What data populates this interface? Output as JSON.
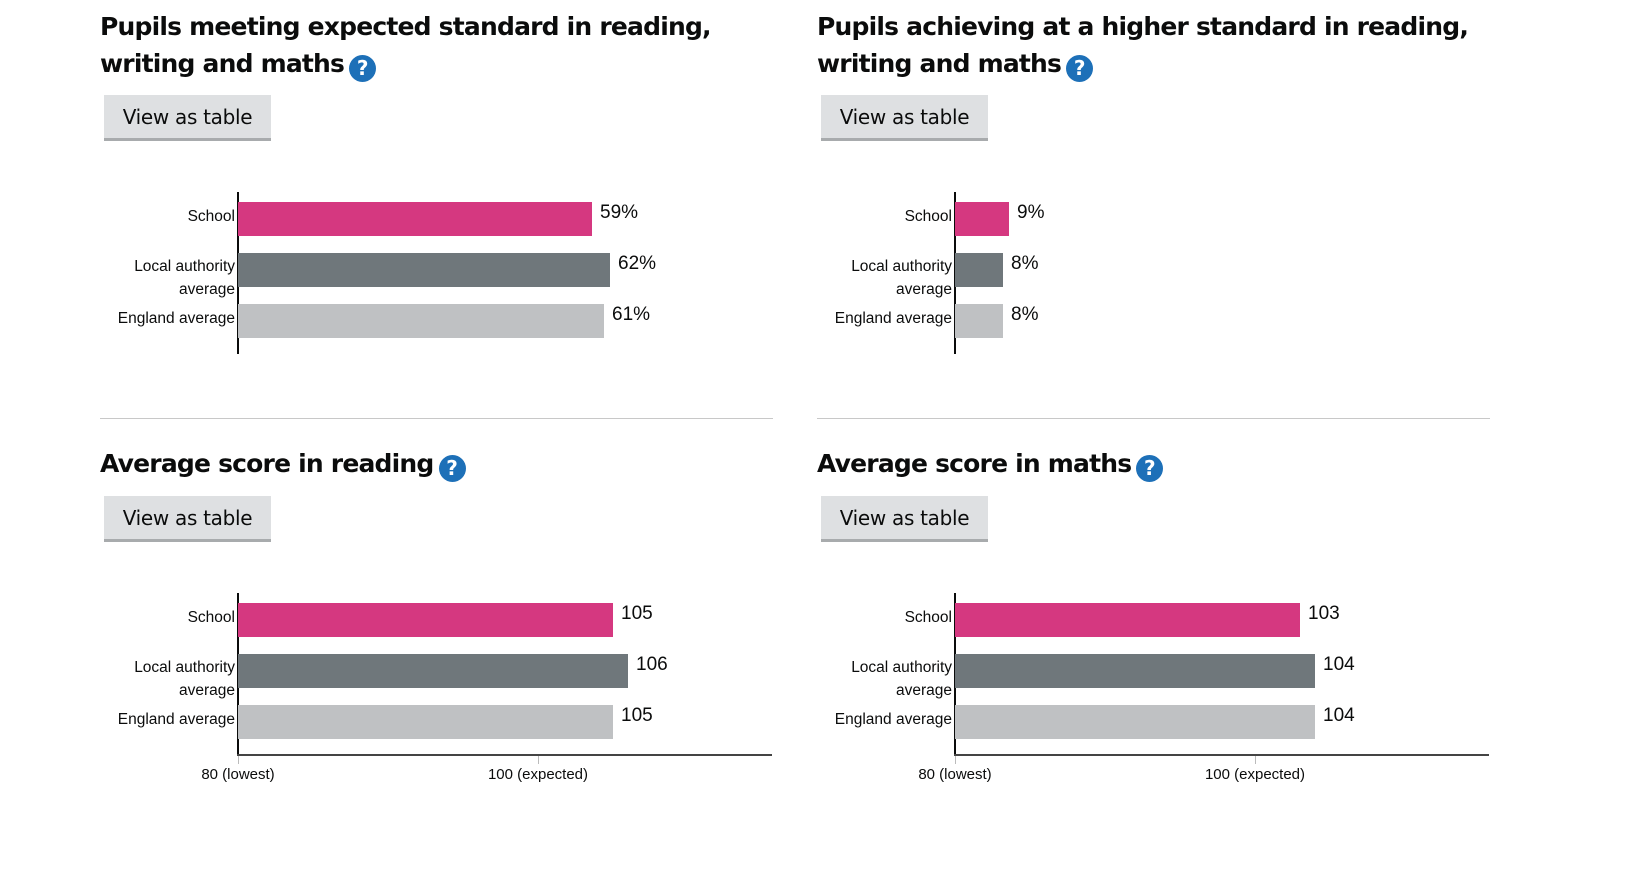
{
  "help_icon": "question-mark-circle-icon",
  "button_label": "View as table",
  "colors": {
    "school": "#d53880",
    "local_authority": "#6f777b",
    "england": "#bfc1c3",
    "help": "#1d70b8"
  },
  "panels": [
    {
      "title": "Pupils meeting expected standard in reading, writing and maths"
    },
    {
      "title": "Pupils achieving at a higher standard in reading, writing and maths"
    },
    {
      "title": "Average score in reading"
    },
    {
      "title": "Average score in maths"
    }
  ],
  "chart_data": [
    {
      "type": "bar",
      "orientation": "horizontal",
      "categories": [
        "School",
        "Local authority average",
        "England average"
      ],
      "values": [
        59,
        62,
        61
      ],
      "value_labels": [
        "59%",
        "62%",
        "61%"
      ],
      "xlim": [
        0,
        100
      ],
      "unit": "%",
      "grid": false
    },
    {
      "type": "bar",
      "orientation": "horizontal",
      "categories": [
        "School",
        "Local authority average",
        "England average"
      ],
      "values": [
        9,
        8,
        8
      ],
      "value_labels": [
        "9%",
        "8%",
        "8%"
      ],
      "xlim": [
        0,
        100
      ],
      "unit": "%",
      "grid": false
    },
    {
      "type": "bar",
      "orientation": "horizontal",
      "categories": [
        "School",
        "Local authority average",
        "England average"
      ],
      "values": [
        105,
        106,
        105
      ],
      "value_labels": [
        "105",
        "106",
        "105"
      ],
      "xlim": [
        80,
        120
      ],
      "ticks": [
        80,
        100
      ],
      "tick_labels": [
        "80 (lowest)",
        "100 (expected)"
      ],
      "grid": false
    },
    {
      "type": "bar",
      "orientation": "horizontal",
      "categories": [
        "School",
        "Local authority average",
        "England average"
      ],
      "values": [
        103,
        104,
        104
      ],
      "value_labels": [
        "103",
        "104",
        "104"
      ],
      "xlim": [
        80,
        120
      ],
      "ticks": [
        80,
        100
      ],
      "tick_labels": [
        "80 (lowest)",
        "100 (expected)"
      ],
      "grid": false
    }
  ]
}
